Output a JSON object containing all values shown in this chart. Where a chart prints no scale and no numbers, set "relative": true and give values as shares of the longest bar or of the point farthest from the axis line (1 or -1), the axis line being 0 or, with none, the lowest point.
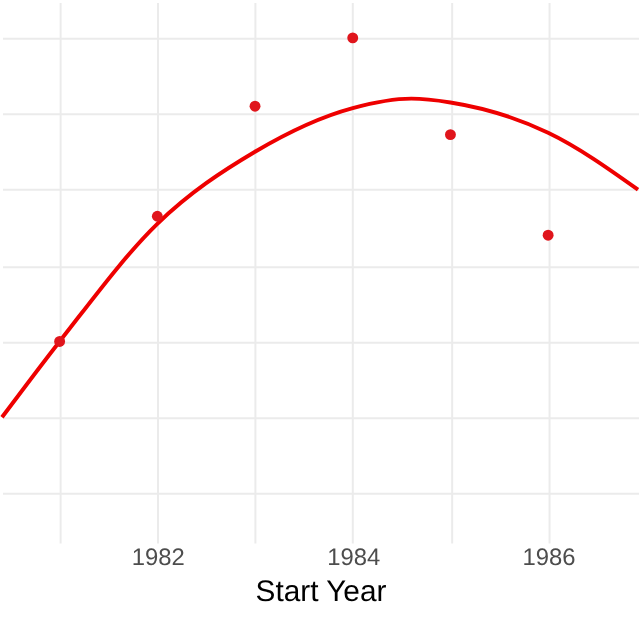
{
  "chart_data": {
    "type": "scatter",
    "xlabel": "Start Year",
    "relative": true,
    "xlim": [
      1980.41,
      1986.92
    ],
    "xticks": [
      {
        "value": 1981,
        "label": null
      },
      1982,
      {
        "value": 1983,
        "label": null
      },
      1984,
      {
        "value": 1985,
        "label": null
      },
      1986
    ],
    "grid": true,
    "series": [
      {
        "color": "#e0151c",
        "marker": "circle",
        "x": [
          1981,
          1982,
          1983,
          1984,
          1985,
          1986
        ],
        "values": [
          0.2,
          0.53,
          0.82,
          1.0,
          0.745,
          0.48
        ]
      },
      {
        "type": "line",
        "color": "#ee0000",
        "line_style": "solid",
        "marker": "none",
        "x": [
          1980.41,
          1981,
          1982,
          1983,
          1984,
          1984.6,
          1985,
          1986,
          1986.92
        ],
        "values": [
          0,
          0.2,
          0.51,
          0.7,
          0.815,
          0.84,
          0.83,
          0.75,
          0.6
        ]
      }
    ]
  }
}
